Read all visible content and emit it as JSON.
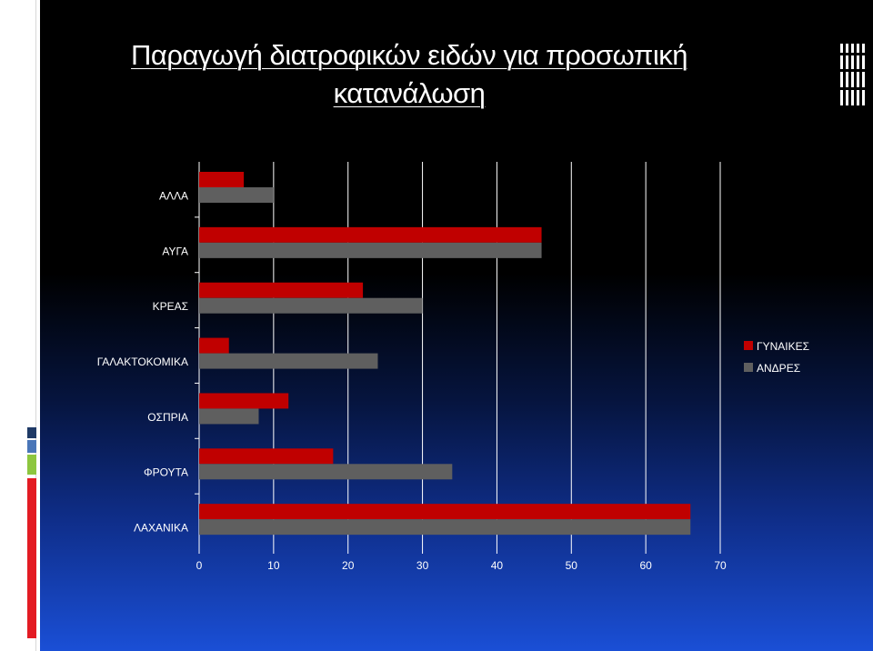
{
  "slide": {
    "title": "Παραγωγή διατροφικών ειδών για προσωπική κατανάλωση"
  },
  "colors": {
    "background_top": "#000000",
    "background_bottom": "#1a4fd6",
    "women": "#c00000",
    "men": "#5f5f5f",
    "axis_text": "#ffffff",
    "grid": "#ffffff"
  },
  "chart_data": {
    "type": "bar",
    "orientation": "horizontal",
    "categories": [
      "ΑΛΛΑ",
      "ΑΥΓΑ",
      "ΚΡΕΑΣ",
      "ΓΑΛΑΚΤΟΚΟΜΙΚΑ",
      "ΟΣΠΡΙΑ",
      "ΦΡΟΥΤΑ",
      "ΛΑΧΑΝΙΚΑ"
    ],
    "series": [
      {
        "name": "ΓΥΝΑΙΚΕΣ",
        "values": [
          6,
          46,
          22,
          4,
          12,
          18,
          66
        ]
      },
      {
        "name": "ΑΝΔΡΕΣ",
        "values": [
          10,
          46,
          30,
          24,
          8,
          34,
          66
        ]
      }
    ],
    "xlim": [
      0,
      70
    ],
    "xticks": [
      "0",
      "10",
      "20",
      "30",
      "40",
      "50",
      "60",
      "70"
    ],
    "grid": true,
    "legend_position": "right",
    "title": "",
    "xlabel": "",
    "ylabel": ""
  }
}
